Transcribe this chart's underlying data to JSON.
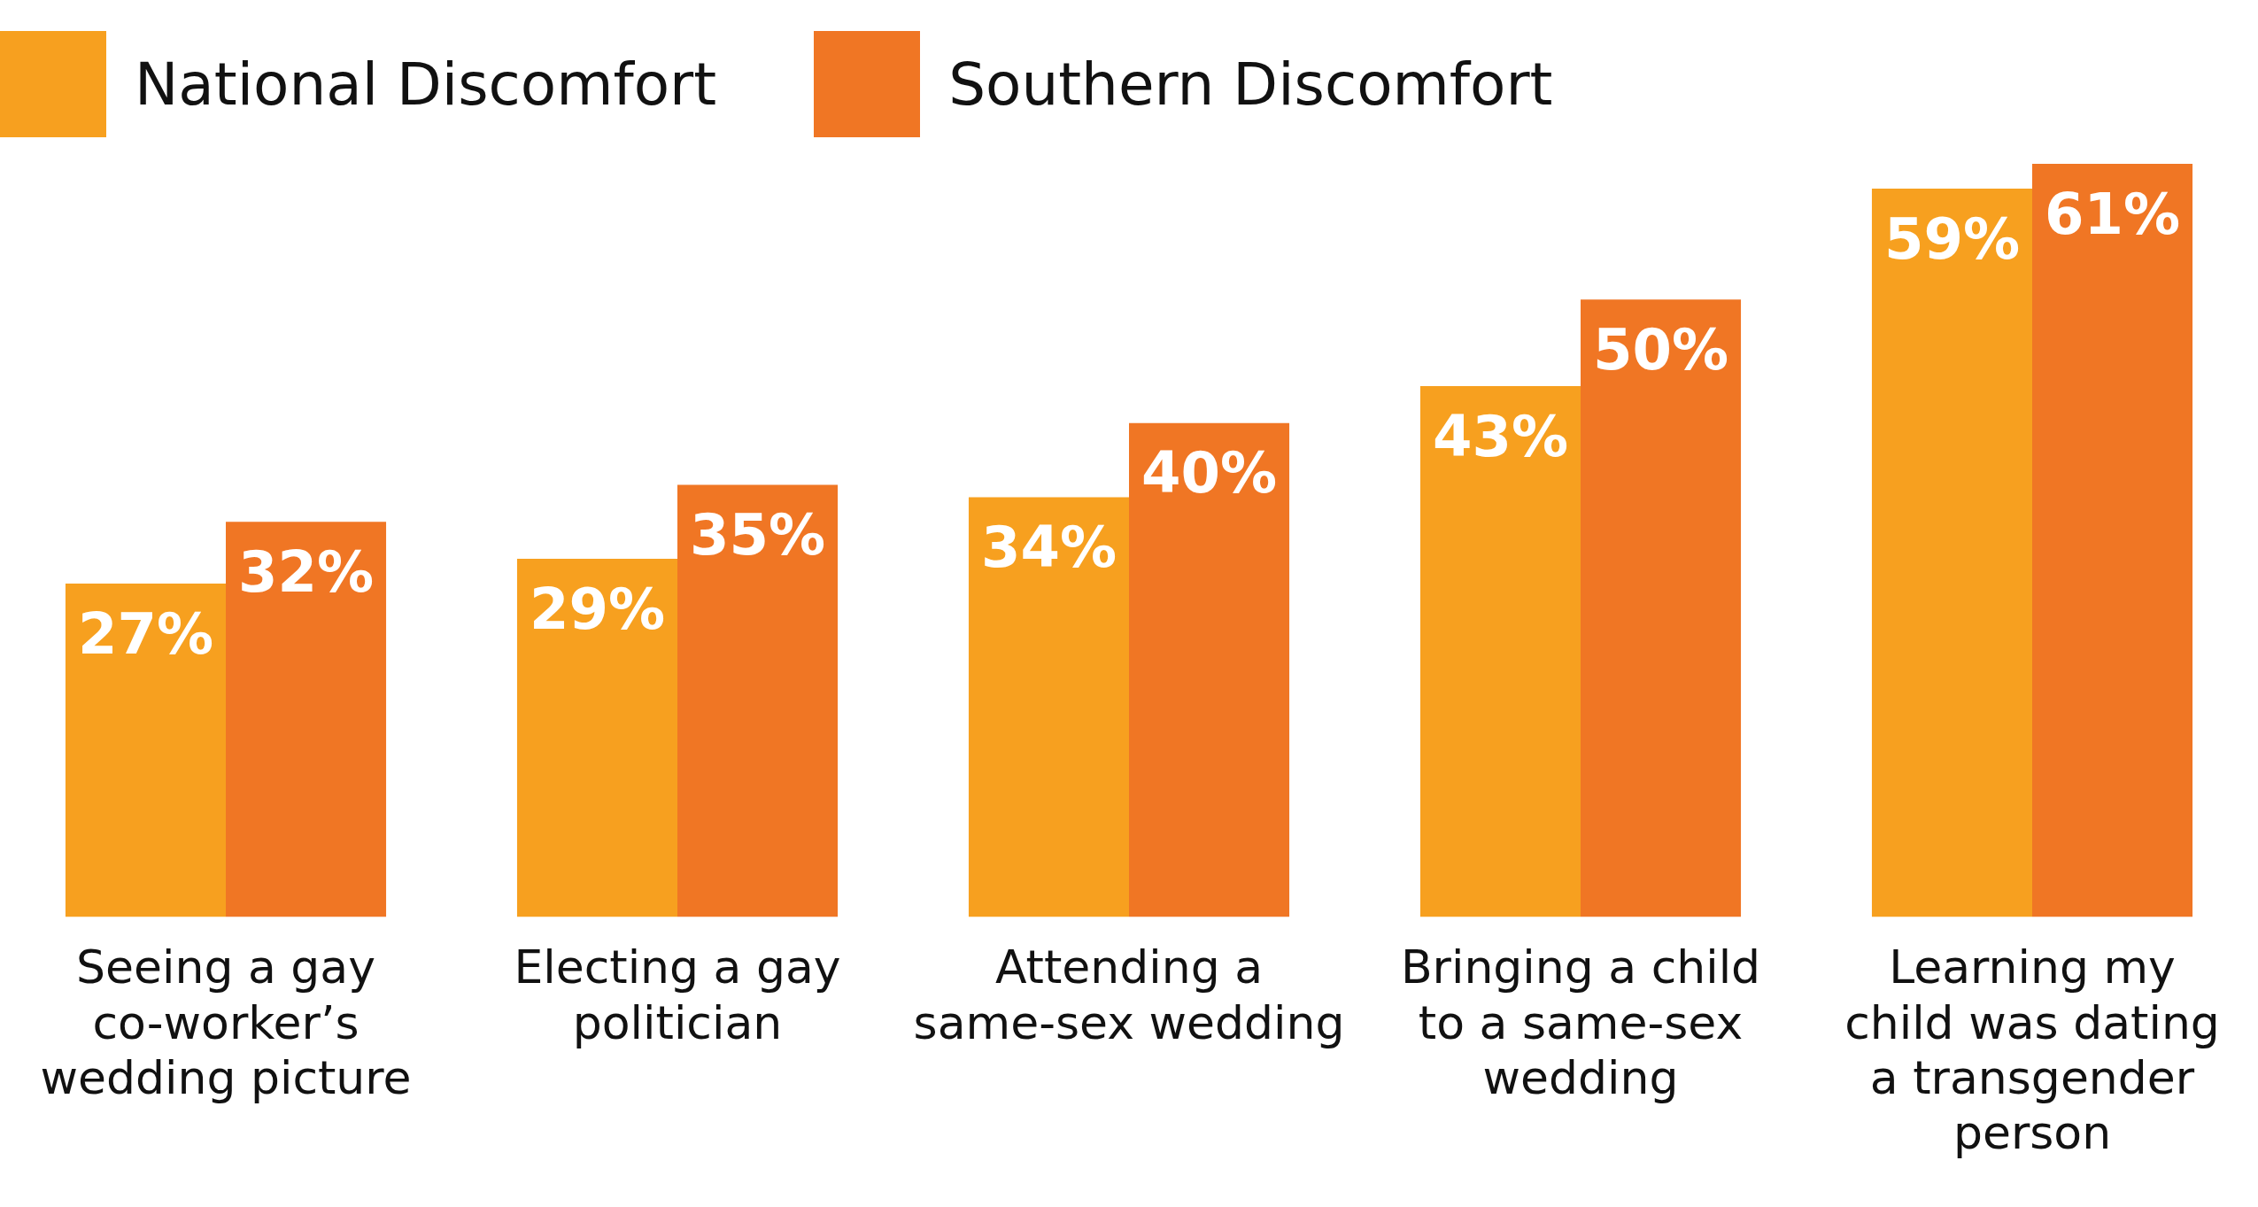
{
  "chart_data": {
    "type": "bar",
    "categories": [
      "Seeing a gay co-worker’s wedding picture",
      "Electing a gay politician",
      "Attending a same-sex wedding",
      "Bringing a child to a same-sex wedding",
      "Learning my child was dating a transgender person"
    ],
    "series": [
      {
        "name": "National Discomfort",
        "color": "#f7a01f",
        "values": [
          27,
          29,
          34,
          43,
          59
        ],
        "value_labels": [
          "27%",
          "29%",
          "34%",
          "43%",
          "59%"
        ]
      },
      {
        "name": "Southern Discomfort",
        "color": "#f07624",
        "values": [
          32,
          35,
          40,
          50,
          61
        ],
        "value_labels": [
          "32%",
          "35%",
          "40%",
          "50%",
          "61%"
        ]
      }
    ],
    "legend": "top left",
    "grid": false
  }
}
